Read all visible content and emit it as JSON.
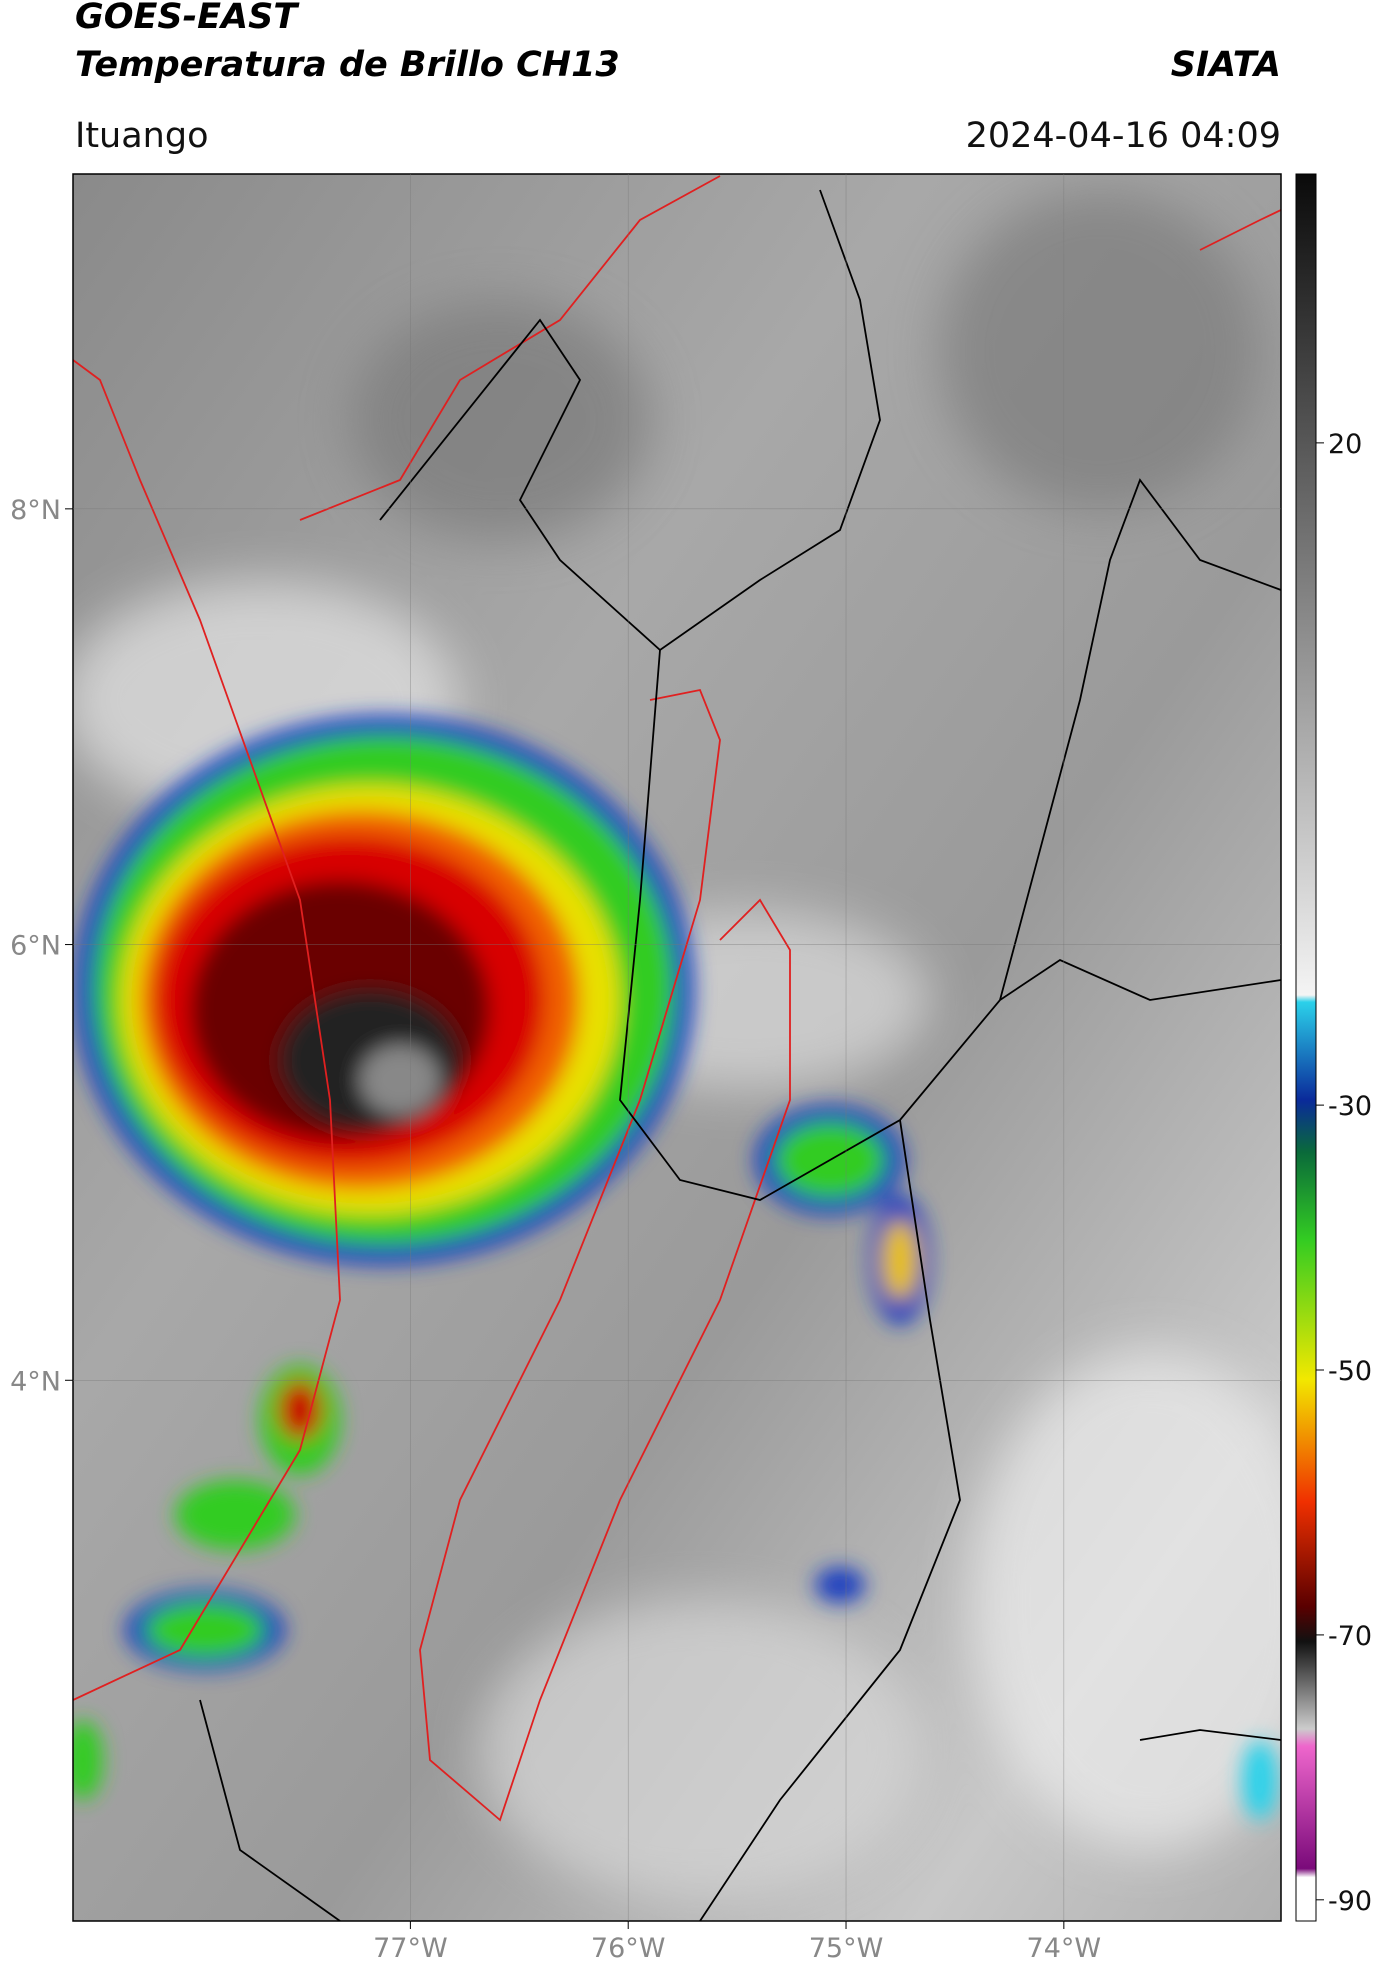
{
  "header": {
    "title": "GOES-EAST",
    "subtitle": "Temperatura de Brillo CH13",
    "source": "SIATA",
    "location": "Ituango",
    "datetime": "2024-04-16 04:09"
  },
  "map": {
    "xlim": [
      -78.549,
      -73.003
    ],
    "ylim": [
      1.518,
      9.537
    ],
    "xticks": [
      {
        "value": -77,
        "label": "77°W"
      },
      {
        "value": -76,
        "label": "76°W"
      },
      {
        "value": -75,
        "label": "75°W"
      },
      {
        "value": -74,
        "label": "74°W"
      }
    ],
    "yticks": [
      {
        "value": 4,
        "label": "4°N"
      },
      {
        "value": 6,
        "label": "6°N"
      },
      {
        "value": 8,
        "label": "8°N"
      }
    ],
    "grid": true
  },
  "colorbar": {
    "lim": [
      -91.6,
      40.3
    ],
    "ticks": [
      20,
      -30,
      -50,
      -70,
      -90
    ]
  }
}
